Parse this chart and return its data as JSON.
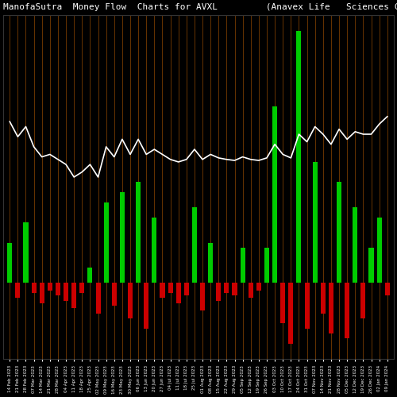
{
  "title": "ManofaSutra  Money Flow  Charts for AVXL         (Anavex Life   Sciences C",
  "background_color": "#000000",
  "bar_width": 0.6,
  "labels": [
    "14 Feb 2023",
    "21 Feb 2023",
    "28 Feb 2023",
    "07 Mar 2023",
    "14 Mar 2023",
    "21 Mar 2023",
    "28 Mar 2023",
    "04 Apr 2023",
    "11 Apr 2023",
    "18 Apr 2023",
    "25 Apr 2023",
    "02 May 2023",
    "09 May 2023",
    "16 May 2023",
    "23 May 2023",
    "30 May 2023",
    "06 Jun 2023",
    "13 Jun 2023",
    "20 Jun 2023",
    "27 Jun 2023",
    "04 Jul 2023",
    "11 Jul 2023",
    "18 Jul 2023",
    "25 Jul 2023",
    "01 Aug 2023",
    "08 Aug 2023",
    "15 Aug 2023",
    "22 Aug 2023",
    "29 Aug 2023",
    "05 Sep 2023",
    "12 Sep 2023",
    "19 Sep 2023",
    "26 Sep 2023",
    "03 Oct 2023",
    "10 Oct 2023",
    "17 Oct 2023",
    "24 Oct 2023",
    "31 Oct 2023",
    "07 Nov 2023",
    "14 Nov 2023",
    "21 Nov 2023",
    "28 Nov 2023",
    "05 Dec 2023",
    "12 Dec 2023",
    "19 Dec 2023",
    "26 Dec 2023",
    "02 Jan 2024",
    "09 Jan 2024"
  ],
  "bar_values": [
    80,
    -30,
    120,
    -20,
    -40,
    -15,
    -25,
    -35,
    -50,
    -20,
    30,
    -60,
    160,
    -45,
    180,
    -70,
    200,
    -90,
    130,
    -30,
    -20,
    -40,
    -25,
    150,
    -55,
    80,
    -35,
    -20,
    -25,
    70,
    -30,
    -15,
    70,
    350,
    -80,
    -120,
    500,
    -90,
    240,
    -60,
    -100,
    200,
    -110,
    150,
    -70,
    70,
    130,
    -25
  ],
  "line_values": [
    320,
    290,
    310,
    270,
    250,
    255,
    245,
    235,
    210,
    220,
    235,
    210,
    270,
    250,
    285,
    255,
    285,
    255,
    265,
    255,
    245,
    240,
    245,
    265,
    245,
    255,
    248,
    245,
    243,
    250,
    245,
    243,
    248,
    275,
    255,
    248,
    295,
    280,
    310,
    295,
    275,
    305,
    285,
    300,
    295,
    295,
    315,
    330
  ],
  "line_color": "#ffffff",
  "green_color": "#00cc00",
  "red_color": "#cc0000",
  "orange_color": "#cc6600",
  "title_color": "#ffffff",
  "title_fontsize": 8
}
